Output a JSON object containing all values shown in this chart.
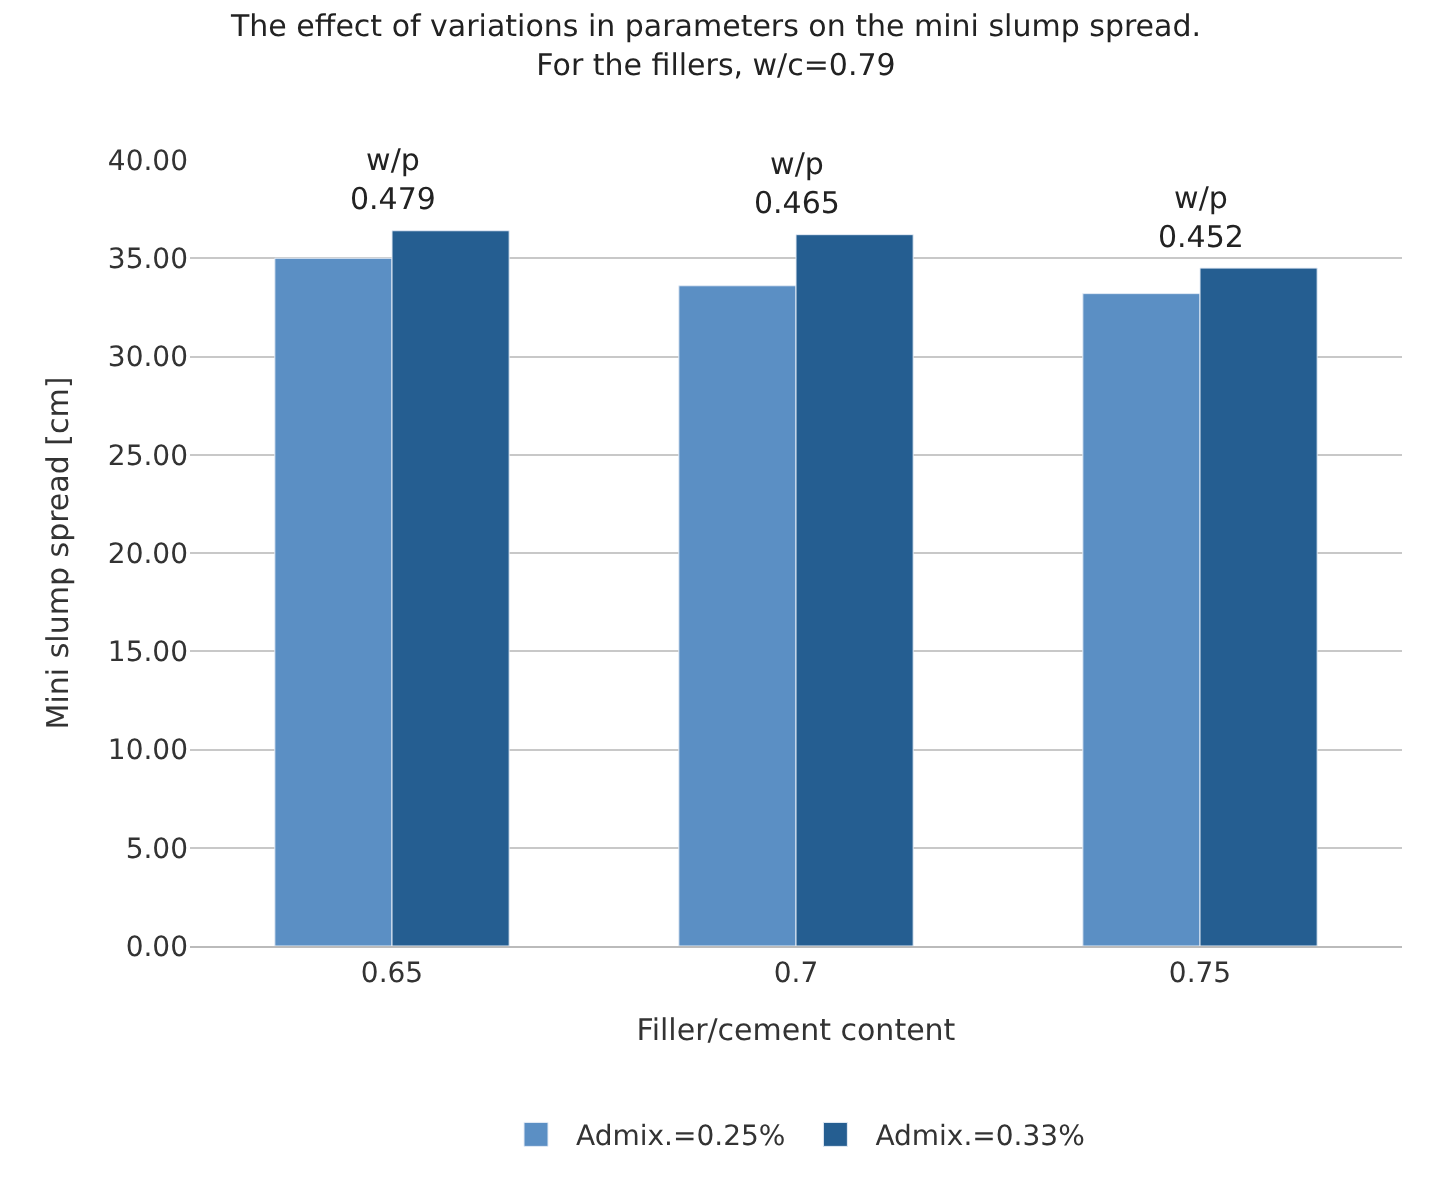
{
  "chart_data": {
    "type": "bar",
    "title": "The effect of variations in parameters on the mini slump spread.\nFor the fillers, w/c=0.79",
    "xlabel": "Filler/cement content",
    "ylabel": "Mini slump spread [cm]",
    "categories": [
      "0.65",
      "0.7",
      "0.75"
    ],
    "series": [
      {
        "name": "Admix.=0.25%",
        "color": "#5b8fc4",
        "values": [
          35.0,
          33.6,
          33.2
        ]
      },
      {
        "name": "Admix.=0.33%",
        "color": "#255e91",
        "values": [
          36.4,
          36.2,
          34.5
        ]
      }
    ],
    "ylim": [
      0,
      40
    ],
    "yticks": [
      {
        "value": 0,
        "label": "0.00"
      },
      {
        "value": 5,
        "label": "5.00"
      },
      {
        "value": 10,
        "label": "10.00"
      },
      {
        "value": 15,
        "label": "15.00"
      },
      {
        "value": 20,
        "label": "20.00"
      },
      {
        "value": 25,
        "label": "25.00"
      },
      {
        "value": 30,
        "label": "30.00"
      },
      {
        "value": 35,
        "label": "35.00"
      },
      {
        "value": 40,
        "label": "40.00"
      }
    ],
    "annotations": [
      {
        "text": "w/p\n0.479",
        "x": "0.65",
        "y": 36.4
      },
      {
        "text": "w/p\n0.465",
        "x": "0.7",
        "y": 36.2
      },
      {
        "text": "w/p\n0.452",
        "x": "0.75",
        "y": 34.5
      }
    ],
    "grid": "y",
    "legend": "bottom"
  }
}
